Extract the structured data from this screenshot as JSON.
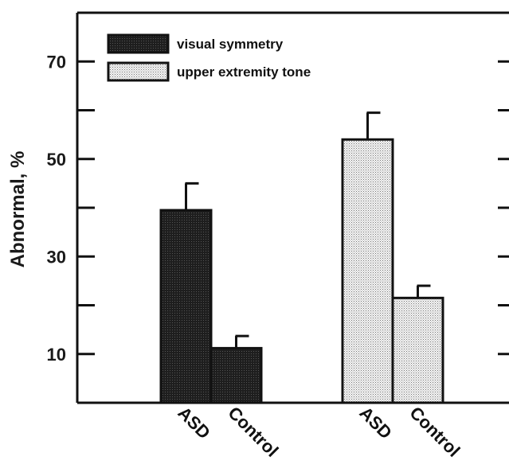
{
  "chart_data": {
    "type": "bar",
    "title": "",
    "xlabel": "",
    "ylabel": "Abnormal, %",
    "ylim": [
      0,
      80
    ],
    "yticks": [
      10,
      30,
      50,
      70
    ],
    "minor_yticks": [
      20,
      40,
      60
    ],
    "categories": [
      "ASD",
      "Control",
      "ASD",
      "Control"
    ],
    "groups": [
      {
        "series_name": "visual symmetry",
        "bars": [
          {
            "category": "ASD",
            "value": 39.5,
            "error": 5.5
          },
          {
            "category": "Control",
            "value": 11.2,
            "error": 2.5
          }
        ]
      },
      {
        "series_name": "upper extremity tone",
        "bars": [
          {
            "category": "ASD",
            "value": 54,
            "error": 5.5
          },
          {
            "category": "Control",
            "value": 21.5,
            "error": 2.5
          }
        ]
      }
    ],
    "legend": {
      "placement": "top-left",
      "entries": [
        {
          "name": "visual symmetry",
          "pattern": "dark"
        },
        {
          "name": "upper extremity tone",
          "pattern": "light-dotted"
        }
      ]
    },
    "grid": false,
    "colors": {
      "dark": "#1e1e1e",
      "light": "#e2e2e2",
      "axis": "#111111"
    }
  }
}
